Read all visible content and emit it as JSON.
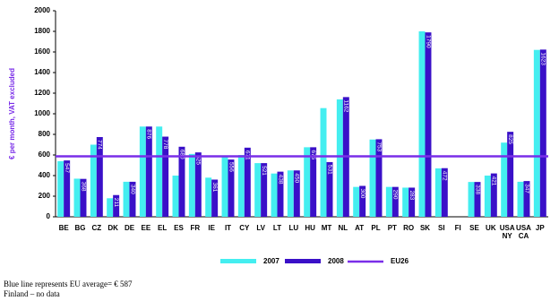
{
  "chart_data": {
    "type": "bar",
    "y_label": "€ per month, VAT excluded",
    "categories": [
      "BE",
      "BG",
      "CZ",
      "DK",
      "DE",
      "EE",
      "EL",
      "ES",
      "FR",
      "IE",
      "IT",
      "CY",
      "LV",
      "LT",
      "LU",
      "HU",
      "MT",
      "NL",
      "AT",
      "PL",
      "PT",
      "RO",
      "SK",
      "SI",
      "FI",
      "SE",
      "UK",
      "USA NY",
      "USA CA",
      "JP"
    ],
    "series": [
      {
        "name": "2007",
        "color": "#44eef0",
        "values": [
          540,
          370,
          700,
          180,
          340,
          876,
          876,
          400,
          610,
          380,
          580,
          600,
          521,
          420,
          450,
          675,
          1055,
          1140,
          290,
          750,
          290,
          283,
          1800,
          470,
          null,
          338,
          400,
          720,
          340,
          1620
        ]
      },
      {
        "name": "2008",
        "color": "#3a10c8",
        "data_labels": true,
        "values": [
          547,
          368,
          774,
          211,
          340,
          876,
          778,
          680,
          625,
          361,
          556,
          671,
          521,
          438,
          450,
          675,
          531,
          1162,
          300,
          753,
          290,
          283,
          1790,
          472,
          null,
          338,
          421,
          825,
          347,
          1623
        ]
      }
    ],
    "reference_line": {
      "name": "EU26",
      "value": 587,
      "color": "#7a2ee8"
    },
    "ylim": [
      0,
      2000
    ],
    "yticks": [
      0,
      200,
      400,
      600,
      800,
      1000,
      1200,
      1400,
      1600,
      1800,
      2000
    ],
    "notes": [
      "Blue line represents EU average= € 587",
      "Finland – no data"
    ]
  }
}
